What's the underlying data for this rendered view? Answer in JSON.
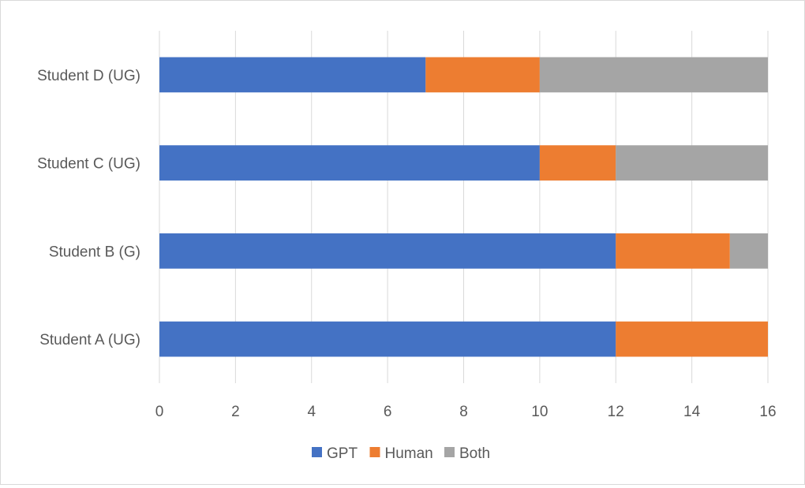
{
  "chart_data": {
    "type": "bar",
    "orientation": "horizontal",
    "stacked": true,
    "categories": [
      "Student A (UG)",
      "Student B (G)",
      "Student C (UG)",
      "Student D (UG)"
    ],
    "series": [
      {
        "name": "GPT",
        "color": "#4472c4",
        "values": [
          12,
          12,
          10,
          7
        ]
      },
      {
        "name": "Human",
        "color": "#ed7d31",
        "values": [
          4,
          3,
          2,
          3
        ]
      },
      {
        "name": "Both",
        "color": "#a5a5a5",
        "values": [
          0,
          1,
          4,
          6
        ]
      }
    ],
    "xlim": [
      0,
      16
    ],
    "xticks": [
      0,
      2,
      4,
      6,
      8,
      10,
      12,
      14,
      16
    ],
    "grid": "vertical",
    "legend": "bottom",
    "title": "",
    "xlabel": "",
    "ylabel": ""
  }
}
